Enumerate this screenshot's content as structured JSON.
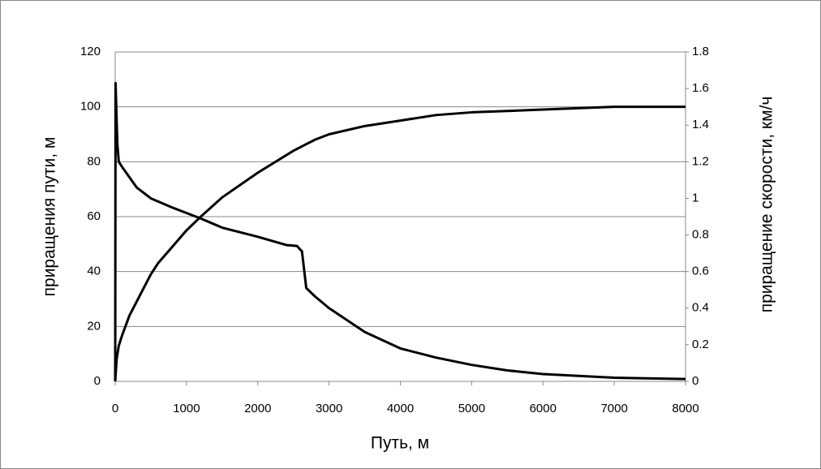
{
  "chart_data": {
    "type": "line",
    "xlabel": "Путь, м",
    "ylabel": "приращения пути, м",
    "y2label": "приращение скорости, км/ч",
    "xlim": [
      0,
      8000
    ],
    "xticks": [
      0,
      1000,
      2000,
      3000,
      4000,
      5000,
      6000,
      7000,
      8000
    ],
    "ylim": [
      0,
      120
    ],
    "yticks": [
      0,
      20,
      40,
      60,
      80,
      100,
      120
    ],
    "y2lim": [
      0,
      1.8
    ],
    "y2ticks": [
      0,
      0.2,
      0.4,
      0.6,
      0.8,
      1,
      1.2,
      1.4,
      1.6,
      1.8
    ],
    "grid": true,
    "series": [
      {
        "color": "#000000",
        "x": [
          0,
          20,
          50,
          100,
          200,
          300,
          400,
          500,
          600,
          800,
          1000,
          1200,
          1500,
          2000,
          2500,
          2800,
          3000,
          3500,
          4000,
          4500,
          5000,
          6000,
          7000,
          8000
        ],
        "values": [
          0,
          8,
          13,
          17,
          24,
          29,
          34,
          39,
          43,
          49,
          55,
          60,
          67,
          76,
          84,
          88,
          90,
          93,
          95,
          97,
          98,
          99,
          100,
          100
        ]
      },
      {
        "color": "#000000",
        "axis": "y2",
        "x": [
          0,
          5,
          30,
          50,
          100,
          300,
          500,
          800,
          1000,
          1200,
          1500,
          2000,
          2400,
          2550,
          2620,
          2680,
          2800,
          3000,
          3500,
          4000,
          4500,
          5000,
          5500,
          6000,
          7000,
          8000
        ],
        "values": [
          0,
          1.63,
          1.3,
          1.2,
          1.17,
          1.06,
          1.0,
          0.95,
          0.92,
          0.89,
          0.84,
          0.79,
          0.745,
          0.74,
          0.71,
          0.51,
          0.465,
          0.4,
          0.27,
          0.18,
          0.13,
          0.09,
          0.06,
          0.04,
          0.02,
          0.013
        ]
      }
    ]
  }
}
